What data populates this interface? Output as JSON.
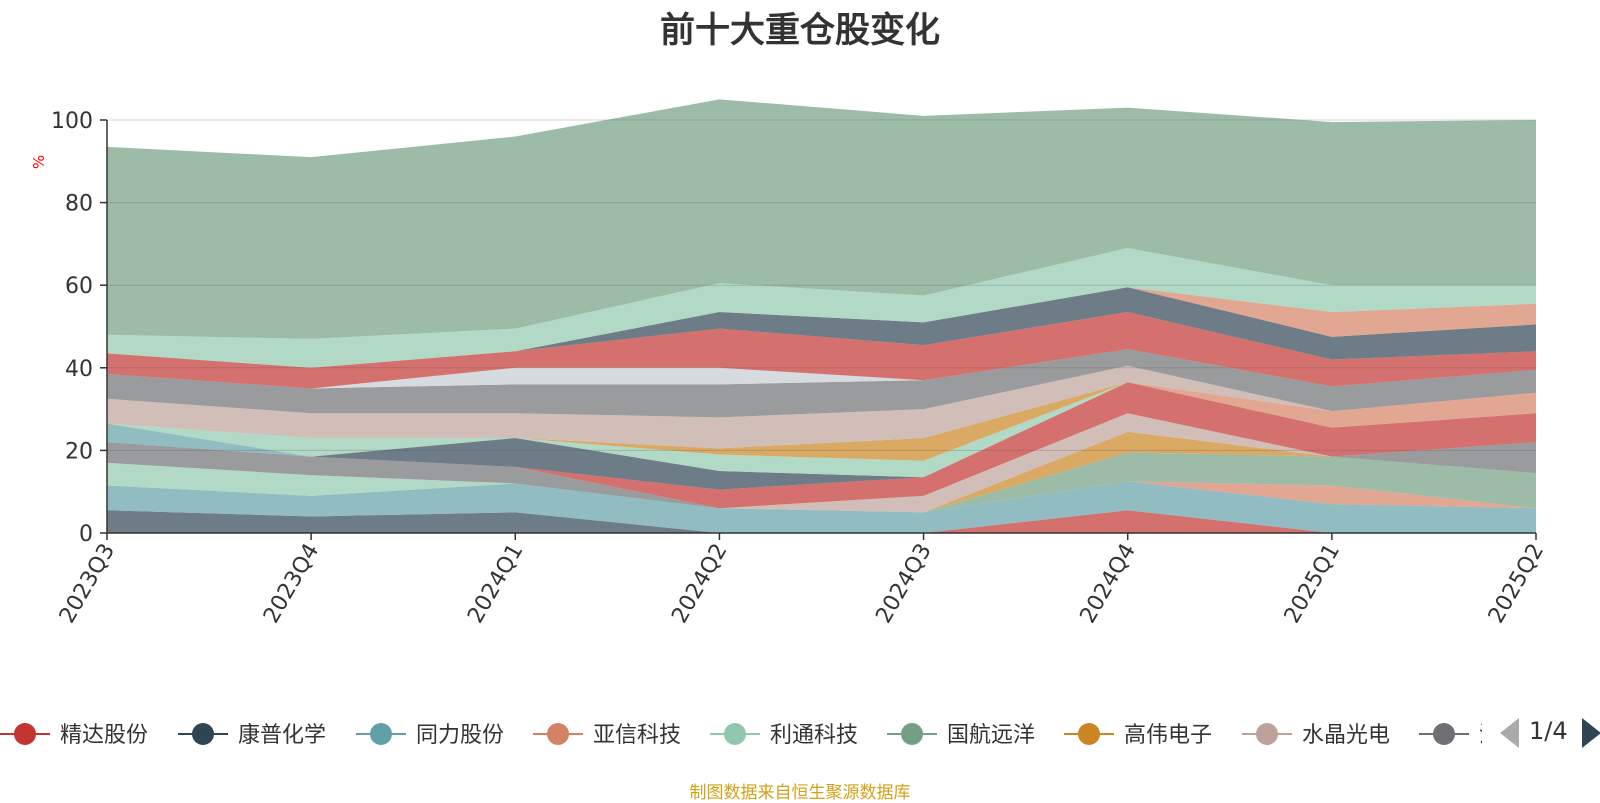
{
  "title": "前十大重仓股变化",
  "source_note": "制图数据来自恒生聚源数据库",
  "legend_page": "1/4",
  "chart_data": {
    "type": "area",
    "stacked": true,
    "title": "前十大重仓股变化",
    "ylabel": "%",
    "ylim": [
      0,
      100
    ],
    "yticks": [
      0,
      20,
      40,
      60,
      80,
      100
    ],
    "grid": true,
    "legend_position": "bottom",
    "categories": [
      "2023Q3",
      "2023Q4",
      "2024Q1",
      "2024Q2",
      "2024Q3",
      "2024Q4",
      "2025Q1",
      "2025Q2"
    ],
    "series": [
      {
        "name": "精达股份",
        "color": "#c23531",
        "values": [
          0,
          0,
          0,
          0,
          0,
          5.5,
          0,
          0
        ]
      },
      {
        "name": "康普化学",
        "color": "#2f4554",
        "values": [
          5.5,
          4,
          5,
          0,
          0,
          0,
          0,
          0
        ]
      },
      {
        "name": "同力股份",
        "color": "#61a0a8",
        "values": [
          6,
          5,
          7,
          6,
          5,
          7,
          7,
          6
        ]
      },
      {
        "name": "亚信科技",
        "color": "#d48265",
        "values": [
          0,
          0,
          0,
          0,
          0,
          0,
          4.5,
          0
        ]
      },
      {
        "name": "利通科技",
        "color": "#91c7ae",
        "values": [
          5.5,
          5,
          0,
          0,
          0,
          0,
          0,
          0
        ]
      },
      {
        "name": "国航远洋",
        "color": "#749f83",
        "values": [
          0,
          0,
          0,
          0,
          0,
          7,
          7,
          8.5
        ]
      },
      {
        "name": "高伟电子",
        "color": "#ca8622",
        "values": [
          0,
          0,
          0,
          0,
          0,
          5,
          0,
          0
        ]
      },
      {
        "name": "水晶光电",
        "color": "#bda29a",
        "values": [
          0,
          0,
          0,
          0,
          4,
          4.5,
          0,
          0
        ]
      },
      {
        "name": "",
        "color": "#6e7074",
        "values": [
          5,
          4.5,
          4,
          0,
          0,
          0,
          0,
          7.5
        ]
      },
      {
        "name": "",
        "color": "#c23531",
        "values": [
          0,
          0,
          0,
          4.5,
          4.5,
          7.5,
          7,
          7
        ]
      },
      {
        "name": "",
        "color": "#2f4554",
        "values": [
          0,
          0,
          7,
          4.5,
          0,
          0,
          0,
          0
        ]
      },
      {
        "name": "",
        "color": "#61a0a8",
        "values": [
          4.5,
          0,
          0,
          0,
          0,
          0,
          0,
          0
        ]
      },
      {
        "name": "",
        "color": "#91c7ae",
        "values": [
          0,
          4.5,
          0,
          4,
          4,
          0,
          0,
          0
        ]
      },
      {
        "name": "",
        "color": "#ca8622",
        "values": [
          0,
          0,
          0,
          1.5,
          5.5,
          0,
          0,
          0
        ]
      },
      {
        "name": "",
        "color": "#d48265",
        "values": [
          0,
          0,
          0,
          0,
          0,
          0,
          4,
          5
        ]
      },
      {
        "name": "",
        "color": "#bda29a",
        "values": [
          6,
          6,
          6,
          7.5,
          7,
          4,
          0,
          0
        ]
      },
      {
        "name": "",
        "color": "#6e7074",
        "values": [
          6,
          6,
          7,
          8,
          7,
          4,
          6,
          5.5
        ]
      },
      {
        "name": "",
        "color": "#c4ccd3",
        "values": [
          0,
          0,
          4,
          4,
          0,
          0,
          0,
          0
        ]
      },
      {
        "name": "",
        "color": "#c23531",
        "values": [
          5,
          5,
          4,
          9.5,
          8.5,
          9,
          6.5,
          4.5
        ]
      },
      {
        "name": "",
        "color": "#2f4554",
        "values": [
          0,
          0,
          0,
          4,
          5.5,
          6,
          5.5,
          6.5
        ]
      },
      {
        "name": "",
        "color": "#d48265",
        "values": [
          0,
          0,
          0,
          0,
          0,
          0,
          6,
          5
        ]
      },
      {
        "name": "",
        "color": "#91c7ae",
        "values": [
          4.5,
          7,
          5.5,
          7,
          6.5,
          9.5,
          6.5,
          4.5
        ]
      },
      {
        "name": "",
        "color": "#749f83",
        "values": [
          45.5,
          44,
          46.5,
          44.5,
          43.5,
          34,
          39.5,
          40
        ]
      }
    ]
  },
  "legend": {
    "items": [
      {
        "label": "精达股份",
        "color": "#c23531"
      },
      {
        "label": "康普化学",
        "color": "#2f4554"
      },
      {
        "label": "同力股份",
        "color": "#61a0a8"
      },
      {
        "label": "亚信科技",
        "color": "#d48265"
      },
      {
        "label": "利通科技",
        "color": "#91c7ae"
      },
      {
        "label": "国航远洋",
        "color": "#749f83"
      },
      {
        "label": "高伟电子",
        "color": "#ca8622"
      },
      {
        "label": "水晶光电",
        "color": "#bda29a"
      },
      {
        "label": "沪",
        "color": "#6e7074"
      }
    ]
  }
}
